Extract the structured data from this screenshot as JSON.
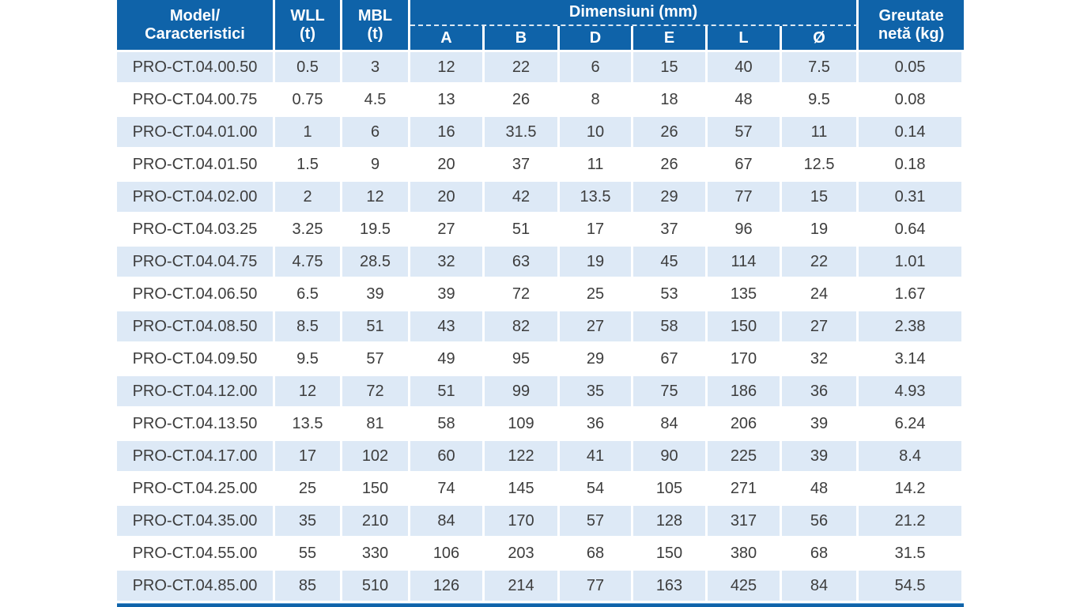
{
  "table": {
    "header": {
      "model": "Model/\nCaracteristici",
      "wll": "WLL\n(t)",
      "mbl": "MBL\n(t)",
      "dimensions_group": "Dimensiuni (mm)",
      "dimension_cols": [
        "A",
        "B",
        "D",
        "E",
        "L",
        "Ø"
      ],
      "weight": "Greutate\nnetă (kg)"
    },
    "rows": [
      [
        "PRO-CT.04.00.50",
        "0.5",
        "3",
        "12",
        "22",
        "6",
        "15",
        "40",
        "7.5",
        "0.05"
      ],
      [
        "PRO-CT.04.00.75",
        "0.75",
        "4.5",
        "13",
        "26",
        "8",
        "18",
        "48",
        "9.5",
        "0.08"
      ],
      [
        "PRO-CT.04.01.00",
        "1",
        "6",
        "16",
        "31.5",
        "10",
        "26",
        "57",
        "11",
        "0.14"
      ],
      [
        "PRO-CT.04.01.50",
        "1.5",
        "9",
        "20",
        "37",
        "11",
        "26",
        "67",
        "12.5",
        "0.18"
      ],
      [
        "PRO-CT.04.02.00",
        "2",
        "12",
        "20",
        "42",
        "13.5",
        "29",
        "77",
        "15",
        "0.31"
      ],
      [
        "PRO-CT.04.03.25",
        "3.25",
        "19.5",
        "27",
        "51",
        "17",
        "37",
        "96",
        "19",
        "0.64"
      ],
      [
        "PRO-CT.04.04.75",
        "4.75",
        "28.5",
        "32",
        "63",
        "19",
        "45",
        "114",
        "22",
        "1.01"
      ],
      [
        "PRO-CT.04.06.50",
        "6.5",
        "39",
        "39",
        "72",
        "25",
        "53",
        "135",
        "24",
        "1.67"
      ],
      [
        "PRO-CT.04.08.50",
        "8.5",
        "51",
        "43",
        "82",
        "27",
        "58",
        "150",
        "27",
        "2.38"
      ],
      [
        "PRO-CT.04.09.50",
        "9.5",
        "57",
        "49",
        "95",
        "29",
        "67",
        "170",
        "32",
        "3.14"
      ],
      [
        "PRO-CT.04.12.00",
        "12",
        "72",
        "51",
        "99",
        "35",
        "75",
        "186",
        "36",
        "4.93"
      ],
      [
        "PRO-CT.04.13.50",
        "13.5",
        "81",
        "58",
        "109",
        "36",
        "84",
        "206",
        "39",
        "6.24"
      ],
      [
        "PRO-CT.04.17.00",
        "17",
        "102",
        "60",
        "122",
        "41",
        "90",
        "225",
        "39",
        "8.4"
      ],
      [
        "PRO-CT.04.25.00",
        "25",
        "150",
        "74",
        "145",
        "54",
        "105",
        "271",
        "48",
        "14.2"
      ],
      [
        "PRO-CT.04.35.00",
        "35",
        "210",
        "84",
        "170",
        "57",
        "128",
        "317",
        "56",
        "21.2"
      ],
      [
        "PRO-CT.04.55.00",
        "55",
        "330",
        "106",
        "203",
        "68",
        "150",
        "380",
        "68",
        "31.5"
      ],
      [
        "PRO-CT.04.85.00",
        "85",
        "510",
        "126",
        "214",
        "77",
        "163",
        "425",
        "84",
        "54.5"
      ]
    ]
  },
  "colors": {
    "header_blue": "#0f63a9",
    "row_stripe": "#dde9f6",
    "row_white": "#ffffff",
    "body_text": "#3d3d3d",
    "bottom_bar": "#0f63a9"
  }
}
